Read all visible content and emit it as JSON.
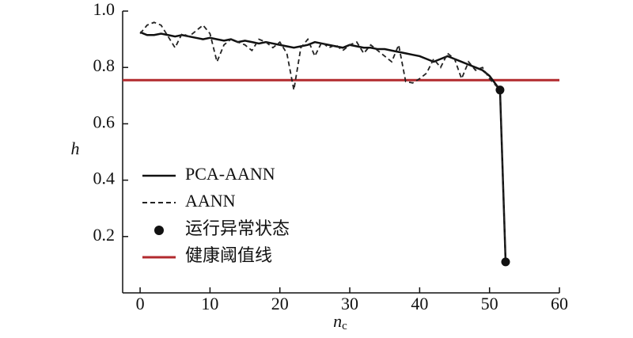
{
  "chart_data": {
    "type": "line",
    "xlabel": {
      "main": "n",
      "sub": "c"
    },
    "ylabel": "h",
    "xlim": [
      -2.5,
      60
    ],
    "ylim": [
      0,
      1
    ],
    "xticks": [
      0,
      10,
      20,
      30,
      40,
      50,
      60
    ],
    "yticks": [
      0.2,
      0.4,
      0.6,
      0.8,
      {
        "value": 1,
        "label": "1.0"
      }
    ],
    "x": [
      0,
      1,
      2,
      3,
      4,
      5,
      6,
      7,
      8,
      9,
      10,
      11,
      12,
      13,
      14,
      15,
      16,
      17,
      18,
      19,
      20,
      21,
      22,
      23,
      24,
      25,
      26,
      27,
      28,
      29,
      30,
      31,
      32,
      33,
      34,
      35,
      36,
      37,
      38,
      39,
      40,
      41,
      42,
      43,
      44,
      45,
      46,
      47,
      48,
      49,
      50,
      51.5,
      52.3
    ],
    "series": [
      {
        "name": "PCA-AANN",
        "color": "#111111",
        "style": "solid",
        "values": [
          0.925,
          0.915,
          0.915,
          0.92,
          0.915,
          0.91,
          0.915,
          0.91,
          0.905,
          0.9,
          0.905,
          0.9,
          0.895,
          0.9,
          0.89,
          0.895,
          0.89,
          0.885,
          0.89,
          0.885,
          0.88,
          0.875,
          0.87,
          0.875,
          0.88,
          0.89,
          0.885,
          0.88,
          0.875,
          0.87,
          0.88,
          0.875,
          0.87,
          0.87,
          0.865,
          0.865,
          0.86,
          0.855,
          0.85,
          0.845,
          0.84,
          0.83,
          0.82,
          0.83,
          0.84,
          0.83,
          0.82,
          0.81,
          0.8,
          0.79,
          0.77,
          0.72,
          0.11
        ]
      },
      {
        "name": "AANN",
        "color": "#222222",
        "style": "dashed",
        "values": [
          0.92,
          0.95,
          0.96,
          0.95,
          0.91,
          0.87,
          0.92,
          0.91,
          0.93,
          0.95,
          0.92,
          0.82,
          0.88,
          0.9,
          0.89,
          0.88,
          0.86,
          0.9,
          0.89,
          0.87,
          0.89,
          0.85,
          0.72,
          0.87,
          0.9,
          0.84,
          0.89,
          0.87,
          0.88,
          0.86,
          0.88,
          0.89,
          0.85,
          0.88,
          0.86,
          0.84,
          0.82,
          0.88,
          0.75,
          0.745,
          0.76,
          0.78,
          0.83,
          0.8,
          0.85,
          0.83,
          0.76,
          0.82,
          0.79,
          0.8,
          0.76,
          0.72,
          0.11
        ]
      }
    ],
    "points": {
      "name": "运行异常状态",
      "color": "#111111",
      "x": [
        51.5,
        52.3
      ],
      "values": [
        0.72,
        0.11
      ]
    },
    "threshold": {
      "name": "健康阈值线",
      "color": "#b22a2e",
      "value": 0.755
    }
  }
}
